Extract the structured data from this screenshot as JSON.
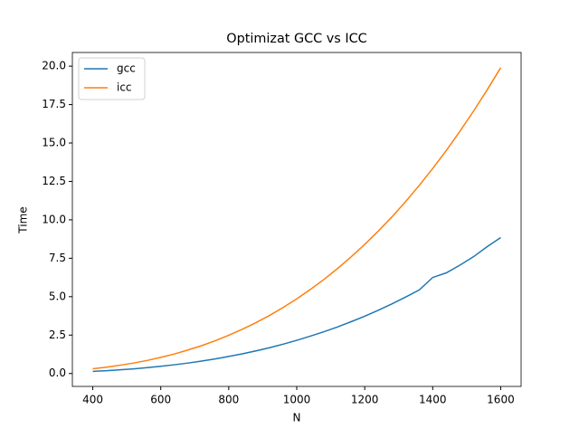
{
  "chart_data": {
    "type": "line",
    "title": "Optimizat GCC vs ICC",
    "x_label": "N",
    "y_label": "Time",
    "x": [
      400,
      440,
      480,
      520,
      560,
      600,
      640,
      680,
      720,
      760,
      800,
      840,
      880,
      920,
      960,
      1000,
      1040,
      1080,
      1120,
      1160,
      1200,
      1240,
      1280,
      1320,
      1360,
      1400,
      1440,
      1480,
      1520,
      1560,
      1600
    ],
    "series": [
      {
        "name": "gcc",
        "color": "#1f77b4",
        "values": [
          0.14,
          0.18,
          0.24,
          0.3,
          0.38,
          0.47,
          0.57,
          0.68,
          0.81,
          0.95,
          1.11,
          1.28,
          1.47,
          1.68,
          1.91,
          2.16,
          2.43,
          2.72,
          3.03,
          3.37,
          3.73,
          4.12,
          4.53,
          4.97,
          5.43,
          6.25,
          6.55,
          7.05,
          7.6,
          8.25,
          8.85
        ]
      },
      {
        "name": "icc",
        "color": "#ff7f0e",
        "values": [
          0.31,
          0.41,
          0.54,
          0.68,
          0.85,
          1.05,
          1.27,
          1.53,
          1.81,
          2.13,
          2.49,
          2.88,
          3.31,
          3.78,
          4.3,
          4.86,
          5.47,
          6.12,
          6.83,
          7.59,
          8.4,
          9.27,
          10.19,
          11.18,
          12.23,
          13.34,
          14.51,
          15.76,
          17.07,
          18.45,
          19.9
        ]
      }
    ],
    "xlim": [
      340,
      1660
    ],
    "ylim": [
      -0.84,
      20.89
    ],
    "xticks": [
      400,
      600,
      800,
      1000,
      1200,
      1400,
      1600
    ],
    "yticks": [
      {
        "value": 0,
        "label": "0.0"
      },
      {
        "value": 2.5,
        "label": "2.5"
      },
      {
        "value": 5,
        "label": "5.0"
      },
      {
        "value": 7.5,
        "label": "7.5"
      },
      {
        "value": 10,
        "label": "10.0"
      },
      {
        "value": 12.5,
        "label": "12.5"
      },
      {
        "value": 15,
        "label": "15.0"
      },
      {
        "value": 17.5,
        "label": "17.5"
      },
      {
        "value": 20,
        "label": "20.0"
      }
    ],
    "legend": "upper left",
    "grid": false
  }
}
